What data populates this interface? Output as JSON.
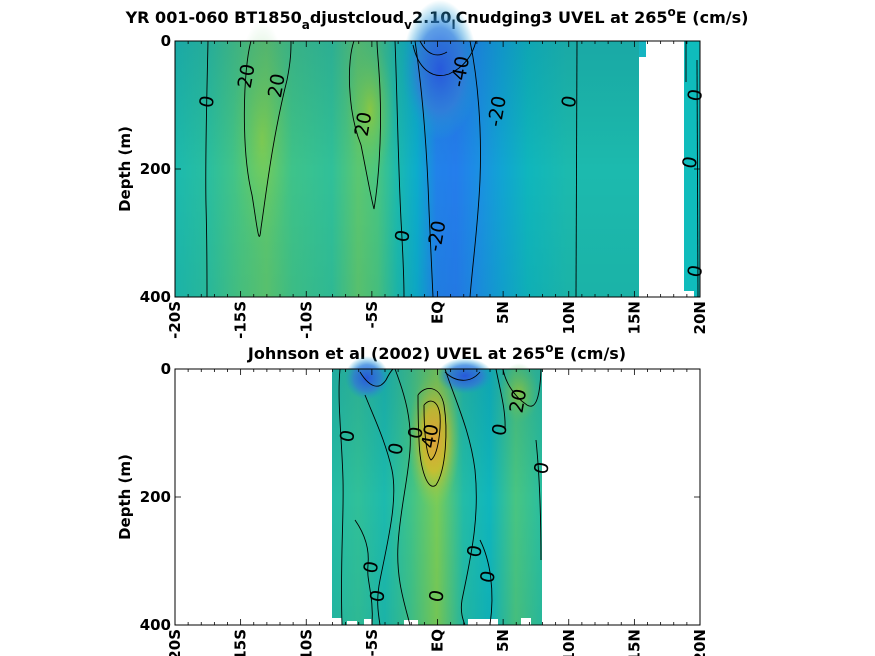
{
  "figure": {
    "panels": [
      {
        "title": {
          "parts": [
            {
              "t": "YR 001-060 BT1850",
              "sub": false
            },
            {
              "t": "a",
              "sub": true
            },
            {
              "t": "djustcloud",
              "sub": false
            },
            {
              "t": "v",
              "sub": true
            },
            {
              "t": "2.10",
              "sub": false
            },
            {
              "t": "l",
              "sub": true
            },
            {
              "t": "Cnudging3 UVEL at 265",
              "sub": false
            },
            {
              "t": "o",
              "sup": true
            },
            {
              "t": "E (cm/s)",
              "sub": false
            }
          ]
        },
        "ylabel": "Depth (m)"
      },
      {
        "title": {
          "parts": [
            {
              "t": "Johnson et al (2002) UVEL at 265",
              "sub": false
            },
            {
              "t": "o",
              "sup": true
            },
            {
              "t": "E (cm/s)",
              "sub": false
            }
          ]
        },
        "ylabel": "Depth (m)"
      }
    ]
  },
  "chart_data": [
    {
      "type": "heatmap",
      "title": "YR 001-060 BT1850_adjustcloud_v2.10_lCnudging3 UVEL at 265°E (cm/s)",
      "ylabel": "Depth (m)",
      "xlim": [
        -20,
        20
      ],
      "ylim": [
        400,
        0
      ],
      "y_reversed": true,
      "xticks": [
        -20,
        -15,
        -10,
        -5,
        0,
        5,
        10,
        15,
        20
      ],
      "xtick_labels": [
        "-20S",
        "-15S",
        "-10S",
        "-5S",
        "EQ",
        "5N",
        "10N",
        "15N",
        "20N"
      ],
      "yticks": [
        0,
        200,
        400
      ],
      "ytick_labels": [
        "0",
        "200",
        "400"
      ],
      "colormap": "parula",
      "color_limits": [
        -60,
        60
      ],
      "data_extent_x": [
        [
          -20,
          15.5
        ],
        [
          18.8,
          20
        ]
      ],
      "contour_levels": [
        -40,
        -20,
        0,
        20
      ],
      "contour_labels": [
        {
          "label": "20",
          "x": -14.5,
          "y": 55
        },
        {
          "label": "20",
          "x": -12.2,
          "y": 70
        },
        {
          "label": "0",
          "x": -17.5,
          "y": 95
        },
        {
          "label": "20",
          "x": -5.6,
          "y": 130
        },
        {
          "label": "-40",
          "x": 1.8,
          "y": 48
        },
        {
          "label": "-20",
          "x": 4.6,
          "y": 110
        },
        {
          "label": "0",
          "x": 10.1,
          "y": 95
        },
        {
          "label": "0",
          "x": -2.6,
          "y": 305
        },
        {
          "label": "-20",
          "x": 0,
          "y": 305
        },
        {
          "label": "0",
          "x": 19.7,
          "y": 85
        },
        {
          "label": "0",
          "x": 19.3,
          "y": 190
        },
        {
          "label": "0",
          "x": 19.7,
          "y": 360
        }
      ],
      "field_columns": [
        {
          "x": -20,
          "u": 0
        },
        {
          "x": -17.5,
          "u": 4
        },
        {
          "x": -15,
          "u": 12
        },
        {
          "x": -13,
          "u": 16
        },
        {
          "x": -11,
          "u": 10
        },
        {
          "x": -8,
          "u": 6
        },
        {
          "x": -6,
          "u": 16
        },
        {
          "x": -4.5,
          "u": 12
        },
        {
          "x": -3,
          "u": 0
        },
        {
          "x": -1.5,
          "u": -10
        },
        {
          "x": 0,
          "u": -28
        },
        {
          "x": 1.5,
          "u": -30
        },
        {
          "x": 3,
          "u": -24
        },
        {
          "x": 5,
          "u": -14
        },
        {
          "x": 7,
          "u": -4
        },
        {
          "x": 10,
          "u": 0
        },
        {
          "x": 15.5,
          "u": 0
        }
      ]
    },
    {
      "type": "heatmap",
      "title": "Johnson et al (2002) UVEL at 265°E (cm/s)",
      "ylabel": "Depth (m)",
      "xlim": [
        -20,
        20
      ],
      "ylim": [
        400,
        0
      ],
      "y_reversed": true,
      "xticks": [
        -20,
        -15,
        -10,
        -5,
        0,
        5,
        10,
        15,
        20
      ],
      "xtick_labels": [
        "-20S",
        "-15S",
        "-10S",
        "-5S",
        "EQ",
        "5N",
        "10N",
        "15N",
        "20N"
      ],
      "yticks": [
        0,
        200,
        400
      ],
      "ytick_labels": [
        "0",
        "200",
        "400"
      ],
      "colormap": "parula",
      "color_limits": [
        -60,
        60
      ],
      "data_extent_x": [
        [
          -8,
          8
        ]
      ],
      "contour_levels": [
        -40,
        -20,
        0,
        20,
        40
      ],
      "contour_labels": [
        {
          "label": "0",
          "x": -6.8,
          "y": 105
        },
        {
          "label": "0",
          "x": -3.1,
          "y": 125
        },
        {
          "label": "0",
          "x": -1.6,
          "y": 100
        },
        {
          "label": "40",
          "x": -0.5,
          "y": 105
        },
        {
          "label": "20",
          "x": 6.2,
          "y": 50
        },
        {
          "label": "0",
          "x": 4.8,
          "y": 95
        },
        {
          "label": "0",
          "x": 8.0,
          "y": 155
        },
        {
          "label": "0",
          "x": 2.9,
          "y": 285
        },
        {
          "label": "0",
          "x": -5.0,
          "y": 310
        },
        {
          "label": "0",
          "x": 3.9,
          "y": 325
        },
        {
          "label": "0",
          "x": -4.5,
          "y": 355
        },
        {
          "label": "0",
          "x": 0,
          "y": 355
        }
      ]
    }
  ]
}
